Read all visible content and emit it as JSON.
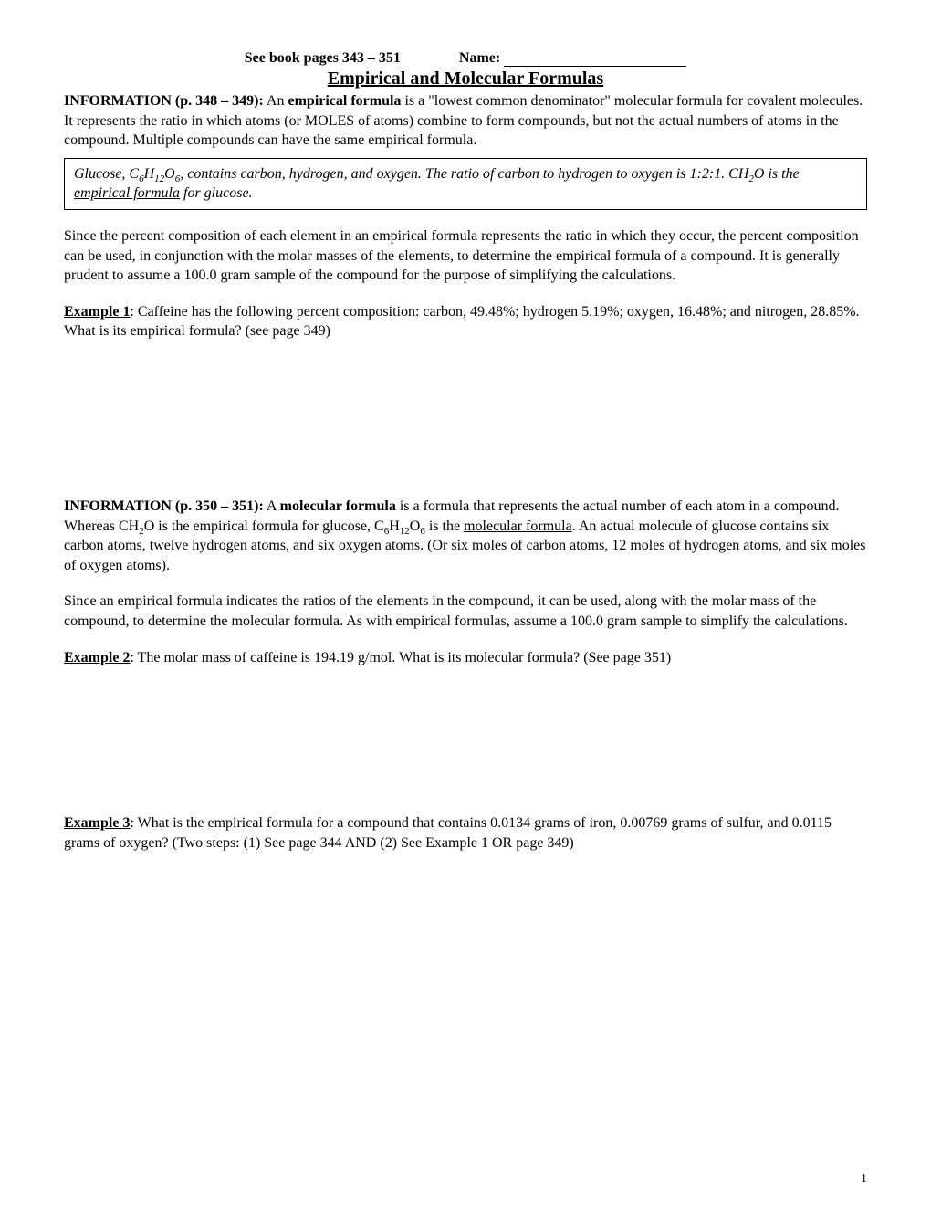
{
  "header": {
    "book_ref": "See book pages 343 – 351",
    "name_label": "Name:"
  },
  "title": "Empirical and Molecular Formulas",
  "info1": {
    "label": "INFORMATION (p. 348 – 349):",
    "lead": "  An ",
    "term": "empirical formula",
    "rest": " is a \"lowest common denominator\" molecular formula for covalent molecules.  It represents the ratio in which atoms (or MOLES of atoms) combine to form compounds, but not the actual numbers of atoms in the compound.  Multiple compounds can have the same empirical formula."
  },
  "box1": {
    "pre": "Glucose, C",
    "sub1": "6",
    "mid1": "H",
    "sub2": "12",
    "mid2": "O",
    "sub3": "6",
    "mid3": ", contains carbon, hydrogen, and oxygen.  The ratio of carbon to hydrogen to oxygen is 1:2:1.  CH",
    "sub4": "2",
    "mid4": "O is the ",
    "underline": "empirical formula",
    "after": " for glucose."
  },
  "para2": "Since the percent composition of each element in an empirical formula represents the ratio in which they occur, the percent composition can be used, in conjunction with the molar masses of the elements, to determine the empirical formula of a compound.  It is generally prudent to assume a 100.0 gram sample of the compound for the purpose of simplifying the calculations.",
  "example1": {
    "label": "Example 1",
    "text": ":   Caffeine has the following percent composition: carbon, 49.48%; hydrogen 5.19%; oxygen, 16.48%; and nitrogen, 28.85%.  What is its empirical formula? (see page 349)"
  },
  "info2": {
    "label": "INFORMATION (p. 350 – 351):",
    "lead": "  A ",
    "term": "molecular formula",
    "mid1": " is a formula that represents the actual number of each atom in a compound.  Whereas CH",
    "sub1": "2",
    "mid2": "O is the empirical formula for glucose, C",
    "sub2": "6",
    "mid3": "H",
    "sub3": "12",
    "mid4": "O",
    "sub4": "6",
    "mid5": " is the ",
    "underline": "molecular formula",
    "after": ".  An actual molecule of glucose contains six carbon atoms, twelve hydrogen atoms, and six oxygen atoms.  (Or six moles of carbon atoms, 12 moles of hydrogen atoms, and six moles of oxygen atoms)."
  },
  "para3": "Since an empirical formula indicates the ratios of the elements in the compound, it can be used, along with the molar mass of the compound, to determine the molecular formula.  As with empirical formulas, assume a 100.0 gram sample to simplify the calculations.",
  "example2": {
    "label": "Example 2",
    "text": ":   The molar mass of caffeine is 194.19 g/mol.  What is its molecular formula? (See page 351)"
  },
  "example3": {
    "label": "Example 3",
    "text": ":   What is the empirical formula for a compound that contains 0.0134 grams of iron, 0.00769 grams of sulfur, and 0.0115 grams of oxygen? (Two steps: (1) See page 344 AND (2) See Example 1 OR page 349)"
  },
  "page_number": "1"
}
